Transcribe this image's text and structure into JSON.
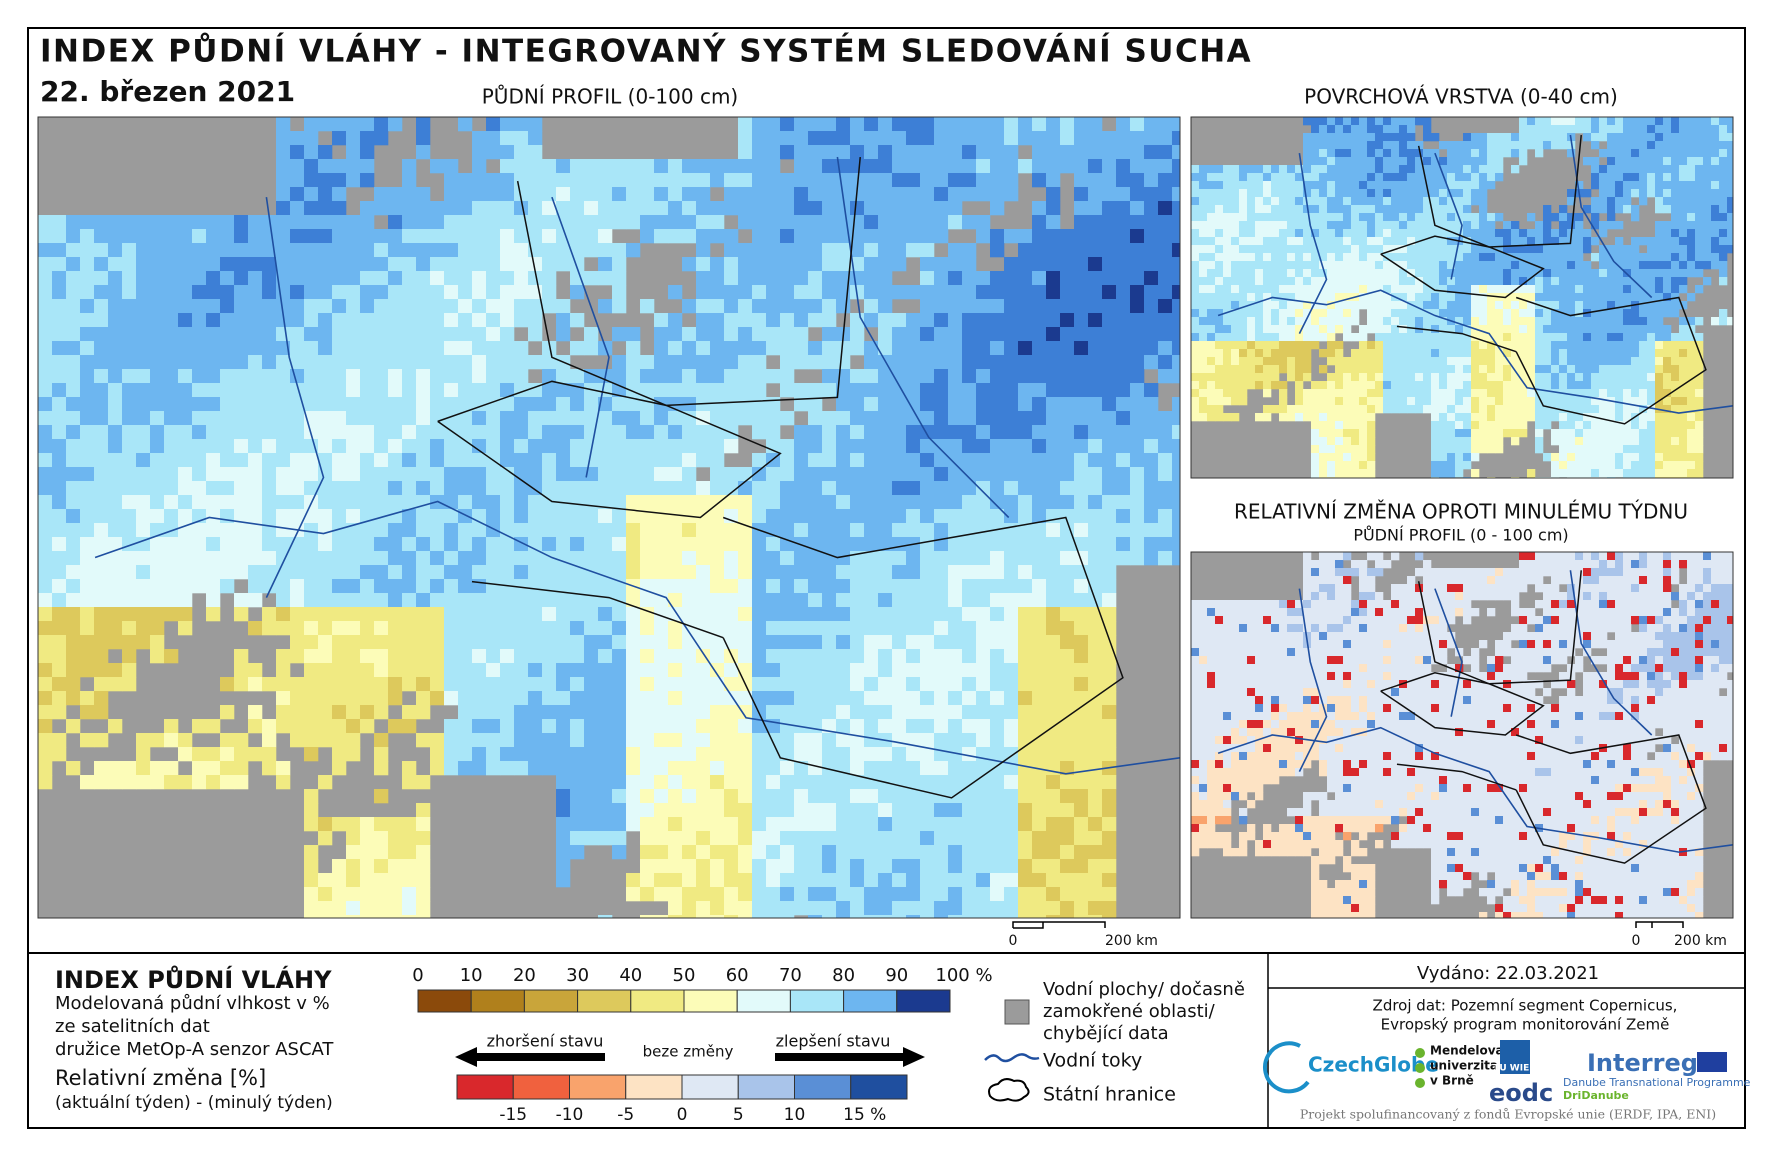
{
  "header": {
    "title": "INDEX PŮDNÍ VLÁHY - INTEGROVANÝ SYSTÉM SLEDOVÁNÍ SUCHA",
    "date": "22. březen 2021"
  },
  "maps": {
    "main_title": "PŮDNÍ PROFIL (0-100 cm)",
    "surface_title": "POVRCHOVÁ VRSTVA (0-40 cm)",
    "change_title": "RELATIVNÍ ZMĚNA OPROTI MINULÉMU TÝDNU",
    "change_subtitle": "PŮDNÍ PROFIL (0 - 100 cm)"
  },
  "scale_bar": {
    "zero": "0",
    "length": "200 km"
  },
  "legend": {
    "title": "INDEX PŮDNÍ VLÁHY",
    "lines": [
      "Modelovaná půdní vlhkost v %",
      "ze satelitních dat",
      "družice MetOp-A senzor ASCAT"
    ],
    "change_title": "Relativní změna [%]",
    "change_subtitle": "(aktuální týden) - (minulý týden)",
    "index_scale": {
      "labels": [
        "0",
        "10",
        "20",
        "30",
        "40",
        "50",
        "60",
        "70",
        "80",
        "90",
        "100 %"
      ],
      "colors": [
        "#8b4a0b",
        "#b0801c",
        "#c9a53a",
        "#ddc95c",
        "#f0ea82",
        "#fcfcb8",
        "#e2fafa",
        "#a9e6f8",
        "#6db6f0",
        "#3d7fd6",
        "#1b3a8f"
      ]
    },
    "change_scale": {
      "labels": [
        "-15",
        "-10",
        "-5",
        "0",
        "5",
        "10",
        "15 %"
      ],
      "colors": [
        "#d9282c",
        "#f0613e",
        "#f9a36c",
        "#fde3c4",
        "#dfe8f4",
        "#a9c4ea",
        "#5a8fd6",
        "#1f4f9f"
      ]
    },
    "worse": "zhoršení stavu",
    "neutral": "beze změny",
    "better": "zlepšení stavu",
    "no_data": [
      "Vodní plochy/ dočasně",
      "zamokřené oblasti/",
      "chybějící data"
    ],
    "rivers": "Vodní toky",
    "borders": "Státní hranice"
  },
  "info": {
    "issued": "Vydáno: 22.03.2021",
    "source": [
      "Zdroj dat: Pozemní segment Copernicus,",
      "Evropský program monitorování Země"
    ],
    "logos": {
      "czechglobe": "CzechGlobe",
      "mendel": [
        "Mendelova",
        "univerzita",
        "v Brně"
      ],
      "tuwien": "TU WIEN",
      "eodc": "eodc",
      "interreg": "Interreg",
      "danube": "Danube Transnational Programme",
      "dridanube": "DriDanube"
    },
    "footer": "Projekt spolufinancovaný z fondů Evropské unie (ERDF, IPA, ENI)"
  }
}
